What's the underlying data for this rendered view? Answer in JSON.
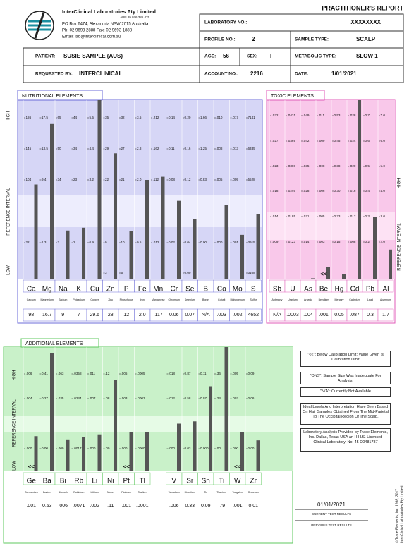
{
  "header": {
    "company": "InterClinical Laboratories Pty Limited",
    "abn": "ABN 89 076 386 475",
    "address": "PO Box 6474, Alexandria NSW 2015 Australia",
    "phone": "Ph: 02 9693 2888  Fax: 02 9693 1888",
    "email": "Email: lab@interclinical.com.au",
    "report_title": "PRACTITIONER'S REPORT"
  },
  "fields": {
    "lab_no": {
      "label": "LABORATORY NO.:",
      "value": "XXXXXXXX"
    },
    "profile_no": {
      "label": "PROFILE NO.:",
      "value": "2"
    },
    "sample_type": {
      "label": "SAMPLE TYPE:",
      "value": "SCALP"
    },
    "patient": {
      "label": "PATIENT:",
      "value": "SUSIE SAMPLE (AUS)"
    },
    "age": {
      "label": "AGE:",
      "value": "56"
    },
    "sex": {
      "label": "SEX:",
      "value": "F"
    },
    "metabolic_type": {
      "label": "METABOLIC TYPE:",
      "value": "SLOW 1"
    },
    "requested_by": {
      "label": "REQUESTED BY:",
      "value": "INTERCLINICAL"
    },
    "account_no": {
      "label": "ACCOUNT NO.:",
      "value": "2216"
    },
    "date": {
      "label": "DATE:",
      "value": "1/01/2021"
    }
  },
  "nutritional": {
    "title": "NUTRITIONAL ELEMENTS",
    "side": {
      "high": "HIGH",
      "ref": "REFERENCE INTERVAL",
      "low": "LOW"
    },
    "elements": [
      {
        "symbol": "Ca",
        "name": "Calcium",
        "ticks": [
          "186",
          "145",
          "104",
          null,
          "22",
          null
        ],
        "result": "98"
      },
      {
        "symbol": "Mg",
        "name": "Magnesium",
        "ticks": [
          "17.5",
          "13.5",
          "9.4",
          null,
          "1.3",
          null
        ],
        "result": "16.7"
      },
      {
        "symbol": "Na",
        "name": "Sodium",
        "ticks": [
          "65",
          "50",
          "34",
          null,
          "3",
          null
        ],
        "result": "9"
      },
      {
        "symbol": "K",
        "name": "Potassium",
        "ticks": [
          "44",
          "34",
          "23",
          null,
          "2",
          null
        ],
        "result": "7"
      },
      {
        "symbol": "Cu",
        "name": "Copper",
        "ticks": [
          "5.5",
          "4.4",
          "3.2",
          null,
          "0.9",
          null
        ],
        "result": "29.6"
      },
      {
        "symbol": "Zn",
        "name": "Zinc",
        "ticks": [
          "35",
          "29",
          "22",
          null,
          "9",
          "3"
        ],
        "result": "28"
      },
      {
        "symbol": "P",
        "name": "Phosphorus",
        "ticks": [
          "32",
          "27",
          "21",
          null,
          "10",
          "5"
        ],
        "result": "12"
      },
      {
        "symbol": "Fe",
        "name": "Iron",
        "ticks": [
          "3.5",
          "2.8",
          "2.0",
          null,
          "0.5",
          null
        ],
        "result": "2.0"
      },
      {
        "symbol": "Mn",
        "name": "Manganese",
        "ticks": [
          ".212",
          ".162",
          ".112",
          null,
          ".012",
          null
        ],
        "result": ".117"
      },
      {
        "symbol": "Cr",
        "name": "Chromium",
        "ticks": [
          "0.14",
          "0.11",
          "0.08",
          null,
          "0.02",
          null
        ],
        "result": "0.06"
      },
      {
        "symbol": "Se",
        "name": "Selenium",
        "ticks": [
          "0.20",
          "0.16",
          "0.12",
          null,
          "0.04",
          "0.00"
        ],
        "result": "0.07"
      },
      {
        "symbol": "B",
        "name": "Boron",
        "ticks": [
          "1.66",
          "1.25",
          "0.83",
          null,
          "0.00",
          null
        ],
        "result": "N/A"
      },
      {
        "symbol": "Co",
        "name": "Cobalt",
        "ticks": [
          ".010",
          ".008",
          ".005",
          null,
          ".000",
          null
        ],
        "result": ".003"
      },
      {
        "symbol": "Mo",
        "name": "Molybdenum",
        "ticks": [
          ".017",
          ".013",
          ".009",
          null,
          ".001",
          null
        ],
        "result": ".002"
      },
      {
        "symbol": "S",
        "name": "Sulfur",
        "ticks": [
          "7141",
          "6335",
          "5528",
          null,
          "3915",
          "3108"
        ],
        "result": "4652"
      }
    ]
  },
  "toxic": {
    "title": "TOXIC ELEMENTS",
    "side": {
      "high": "HIGH",
      "ref": "REFERENCE INTERVAL"
    },
    "elements": [
      {
        "symbol": "Sb",
        "name": "Antimony",
        "ticks": [
          ".032",
          ".027",
          ".023",
          ".018",
          ".014",
          ".009"
        ],
        "result": "N/A"
      },
      {
        "symbol": "U",
        "name": "Uranium",
        "ticks": [
          ".0431",
          ".0369",
          ".0308",
          ".0246",
          ".0185",
          ".0123"
        ],
        "result": ".0003"
      },
      {
        "symbol": "As",
        "name": "Arsenic",
        "ticks": [
          ".049",
          ".042",
          ".035",
          ".028",
          ".021",
          ".014"
        ],
        "result": ".004"
      },
      {
        "symbol": "Be",
        "name": "Beryllium",
        "ticks": [
          ".011",
          ".009",
          ".008",
          ".006",
          ".005",
          ".003"
        ],
        "result": ".001",
        "flag": "<<"
      },
      {
        "symbol": "Hg",
        "name": "Mercury",
        "ticks": [
          "0.53",
          "0.45",
          "0.38",
          "0.30",
          "0.23",
          "0.15"
        ],
        "result": "0.05"
      },
      {
        "symbol": "Cd",
        "name": "Cadmium",
        "ticks": [
          ".028",
          ".024",
          ".020",
          ".016",
          ".012",
          ".008"
        ],
        "result": ".087"
      },
      {
        "symbol": "Pb",
        "name": "Lead",
        "ticks": [
          "0.7",
          "0.6",
          "0.5",
          "0.4",
          "0.3",
          "0.2"
        ],
        "result": "0.3"
      },
      {
        "symbol": "Al",
        "name": "Aluminum",
        "ticks": [
          "7.0",
          "6.0",
          "5.0",
          "4.0",
          "3.0",
          "2.0"
        ],
        "result": "1.7"
      }
    ]
  },
  "additional": {
    "title": "ADDITIONAL ELEMENTS",
    "side": {
      "high": "HIGH",
      "ref": "REFERENCE INTERVAL",
      "low": "LOW"
    },
    "elements": [
      {
        "symbol": "Ge",
        "name": "Germanium",
        "ticks": [
          ".006",
          ".004",
          null,
          ".000"
        ],
        "result": ".001",
        "flag": "<<"
      },
      {
        "symbol": "Ba",
        "name": "Barium",
        "ticks": [
          "0.41",
          "0.27",
          null,
          "0.00"
        ],
        "result": "0.53"
      },
      {
        "symbol": "Bi",
        "name": "Bismuth",
        "ticks": [
          ".063",
          ".035",
          null,
          ".000"
        ],
        "result": ".006"
      },
      {
        "symbol": "Rb",
        "name": "Rubidium",
        "ticks": [
          ".0358",
          ".0244",
          null,
          ".0017"
        ],
        "result": ".0071"
      },
      {
        "symbol": "Li",
        "name": "Lithium",
        "ticks": [
          ".011",
          ".007",
          null,
          ".000"
        ],
        "result": ".002"
      },
      {
        "symbol": "Ni",
        "name": "Nickel",
        "ticks": [
          ".12",
          ".08",
          null,
          ".00"
        ],
        "result": ".11"
      },
      {
        "symbol": "Pt",
        "name": "Platinum",
        "ticks": [
          ".005",
          ".003",
          null,
          ".000"
        ],
        "result": ".001",
        "flag": "<<"
      },
      {
        "symbol": "Tl",
        "name": "Thallium",
        "ticks": [
          ".0005",
          ".0003",
          null,
          ".0000"
        ],
        "result": ".0001"
      },
      {
        "symbol": "V",
        "name": "Vanadium",
        "ticks": [
          ".018",
          ".012",
          null,
          ".000"
        ],
        "result": ".006"
      },
      {
        "symbol": "Sr",
        "name": "Strontium",
        "ticks": [
          "0.87",
          "0.58",
          null,
          "0.03"
        ],
        "result": "0.33"
      },
      {
        "symbol": "Sn",
        "name": "Tin",
        "ticks": [
          "0.11",
          "0.07",
          null,
          "0.000"
        ],
        "result": "0.09"
      },
      {
        "symbol": "Ti",
        "name": "Titanium",
        "ticks": [
          ".36",
          ".24",
          null,
          ".00"
        ],
        "result": ".79"
      },
      {
        "symbol": "W",
        "name": "Tungsten",
        "ticks": [
          ".005",
          ".003",
          null,
          ".000"
        ],
        "result": ".001",
        "flag": "<<"
      },
      {
        "symbol": "Zr",
        "name": "Zirconium",
        "ticks": [
          "0.09",
          "0.06",
          null,
          "0.00"
        ],
        "result": "0.01"
      }
    ]
  },
  "notes": [
    "\"<<\": Below Calibration Limit: Value Given Is Calibration Limit",
    "\"QNS\": Sample Size Was Inadequate For Analysis.",
    "\"N/A\": Currently Not Available",
    "Ideal Levels And Interpretation Have Been Based On Hair Samples Obtained From The Mid-Parietal To The Occipital Region Of The Scalp.",
    "Laboratory Analysis Provided by Trace Elements, Inc. Dallas, Texas USA an H.H.S. Licensed Clinical Laboratory. No. 45 D0481787"
  ],
  "results_footer": {
    "date": "01/01/2021",
    "current": "CURRENT TEST RESULTS",
    "previous": "PREVIOUS TEST RESULTS"
  },
  "copyright": {
    "line1": "© Trace Elements, Inc. 1998, 2017",
    "line2": "InterClinical Laboratories Pty Limited"
  }
}
